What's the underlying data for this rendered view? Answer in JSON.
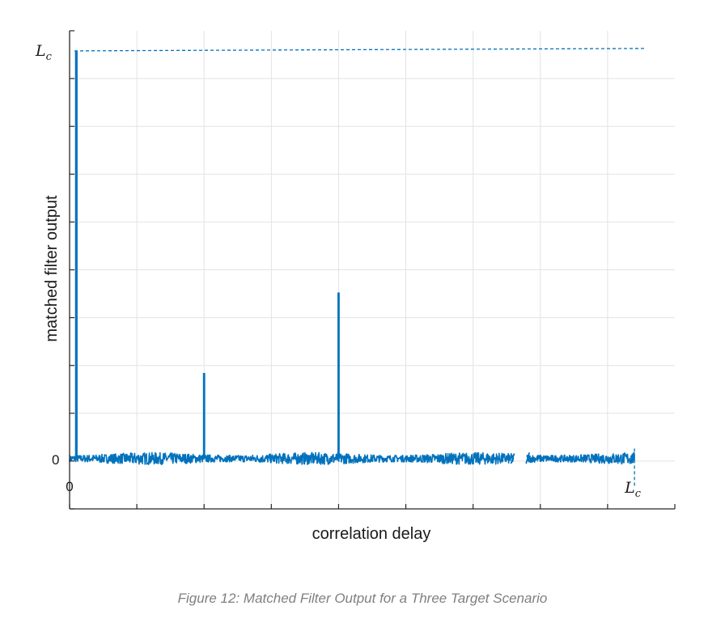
{
  "chart_data": {
    "type": "line",
    "title": "",
    "xlabel": "correlation delay",
    "ylabel": "matched filter output",
    "xlim": [
      0,
      9
    ],
    "ylim": [
      -1,
      8.5
    ],
    "grid": true,
    "color": "#0072bd",
    "x_ticks": [
      {
        "value": 0,
        "label": "0"
      },
      {
        "value": 8.4,
        "label": "L",
        "sub": "c"
      }
    ],
    "y_ticks": [
      {
        "value": 0,
        "label": "0"
      },
      {
        "value": 8.1,
        "label": "L",
        "sub": "c"
      }
    ],
    "reference_lines": [
      {
        "orientation": "horizontal",
        "value": 8.1,
        "style": "dashed",
        "label": "L_c"
      },
      {
        "orientation": "vertical",
        "value": 8.4,
        "style": "dashed",
        "label": "L_c"
      }
    ],
    "peaks": [
      {
        "x": 0.1,
        "y": 8.1
      },
      {
        "x": 2.0,
        "y": 1.7
      },
      {
        "x": 4.0,
        "y": 3.3
      }
    ],
    "noise_band": {
      "x_start": 0,
      "x_end": 8.4,
      "amplitude": 0.12
    },
    "axis_break_x": [
      6.6,
      6.8
    ]
  },
  "caption": "Figure 12: Matched Filter Output for a Three Target Scenario"
}
